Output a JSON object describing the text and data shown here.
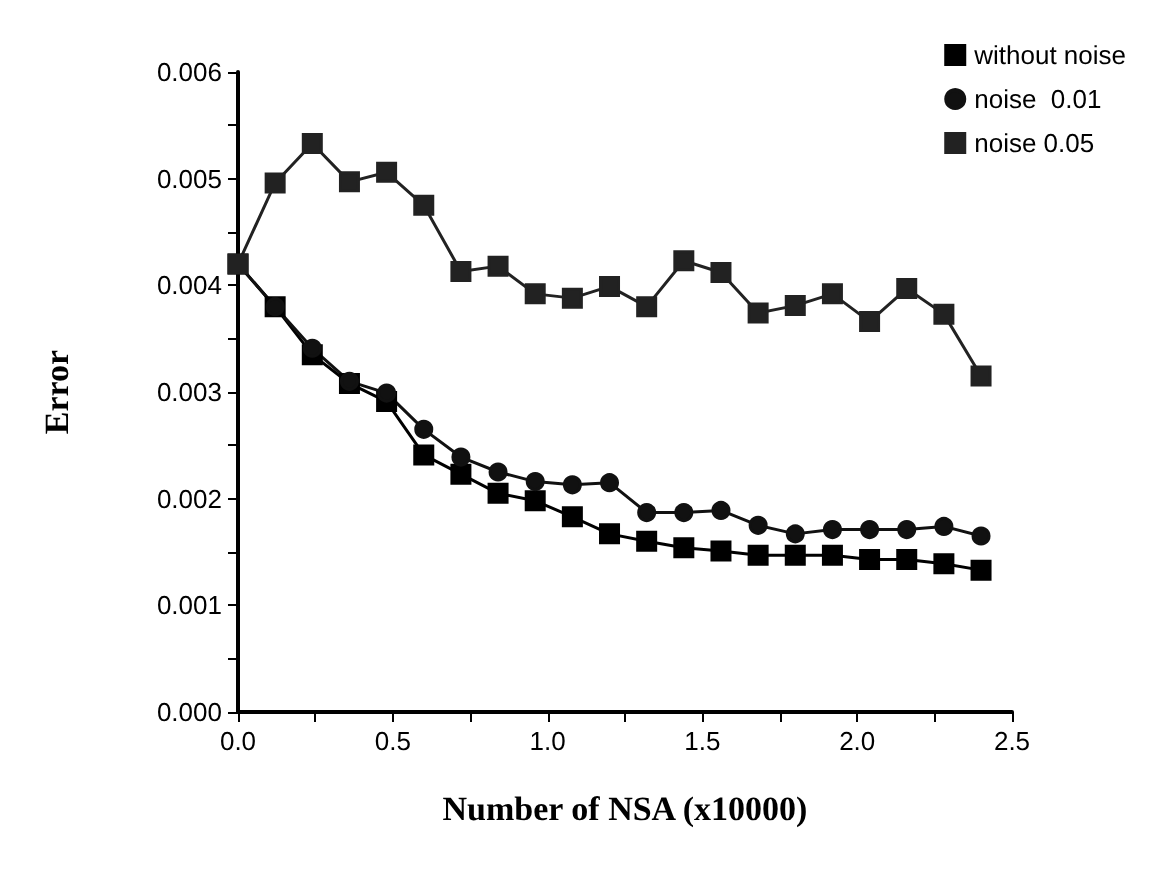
{
  "chart_data": {
    "type": "line",
    "xlabel": "Number of NSA (x10000)",
    "ylabel": "Error",
    "x": [
      0,
      0.12,
      0.24,
      0.36,
      0.48,
      0.6,
      0.72,
      0.84,
      0.96,
      1.08,
      1.2,
      1.32,
      1.44,
      1.56,
      1.68,
      1.8,
      1.92,
      2.04,
      2.16,
      2.28,
      2.4
    ],
    "series": [
      {
        "name": "without noise",
        "color": "#000000",
        "marker": "square",
        "values": [
          0.0042,
          0.0038,
          0.00335,
          0.00308,
          0.00291,
          0.00241,
          0.00223,
          0.00205,
          0.00198,
          0.00183,
          0.00167,
          0.0016,
          0.00154,
          0.00151,
          0.00147,
          0.00147,
          0.00147,
          0.00143,
          0.00143,
          0.00139,
          0.00133
        ]
      },
      {
        "name": "noise  0.01",
        "color": "#111111",
        "marker": "circle",
        "values": [
          0.0042,
          0.0038,
          0.00341,
          0.0031,
          0.00299,
          0.00265,
          0.00239,
          0.00225,
          0.00216,
          0.00213,
          0.00215,
          0.00187,
          0.00187,
          0.00189,
          0.00175,
          0.00167,
          0.00171,
          0.00171,
          0.00171,
          0.00174,
          0.00165
        ]
      },
      {
        "name": "noise 0.05",
        "color": "#222222",
        "marker": "square",
        "values": [
          0.0042,
          0.00496,
          0.00533,
          0.00497,
          0.00506,
          0.00475,
          0.00413,
          0.00418,
          0.00392,
          0.00388,
          0.00399,
          0.0038,
          0.00423,
          0.00412,
          0.00374,
          0.00381,
          0.00392,
          0.00366,
          0.00397,
          0.00373,
          0.00315
        ]
      }
    ],
    "xlim": [
      0,
      2.5
    ],
    "xticks": [
      {
        "value": 0,
        "label": "0.0"
      },
      {
        "value": 0.25,
        "label": null
      },
      {
        "value": 0.5,
        "label": "0.5"
      },
      {
        "value": 0.75,
        "label": null
      },
      {
        "value": 1,
        "label": "1.0"
      },
      {
        "value": 1.25,
        "label": null
      },
      {
        "value": 1.5,
        "label": "1.5"
      },
      {
        "value": 1.75,
        "label": null
      },
      {
        "value": 2,
        "label": "2.0"
      },
      {
        "value": 2.25,
        "label": null
      },
      {
        "value": 2.5,
        "label": "2.5"
      }
    ],
    "ylim": [
      0,
      0.006
    ],
    "yticks": [
      {
        "value": 0,
        "label": "0.000"
      },
      {
        "value": 0.0005,
        "label": null
      },
      {
        "value": 0.001,
        "label": "0.001"
      },
      {
        "value": 0.0015,
        "label": null
      },
      {
        "value": 0.002,
        "label": "0.002"
      },
      {
        "value": 0.0025,
        "label": null
      },
      {
        "value": 0.003,
        "label": "0.003"
      },
      {
        "value": 0.0035,
        "label": null
      },
      {
        "value": 0.004,
        "label": "0.004"
      },
      {
        "value": 0.0045,
        "label": null
      },
      {
        "value": 0.005,
        "label": "0.005"
      },
      {
        "value": 0.0055,
        "label": null
      },
      {
        "value": 0.006,
        "label": "0.006"
      }
    ],
    "grid": false,
    "legend": "top right",
    "line_style": "solid"
  }
}
